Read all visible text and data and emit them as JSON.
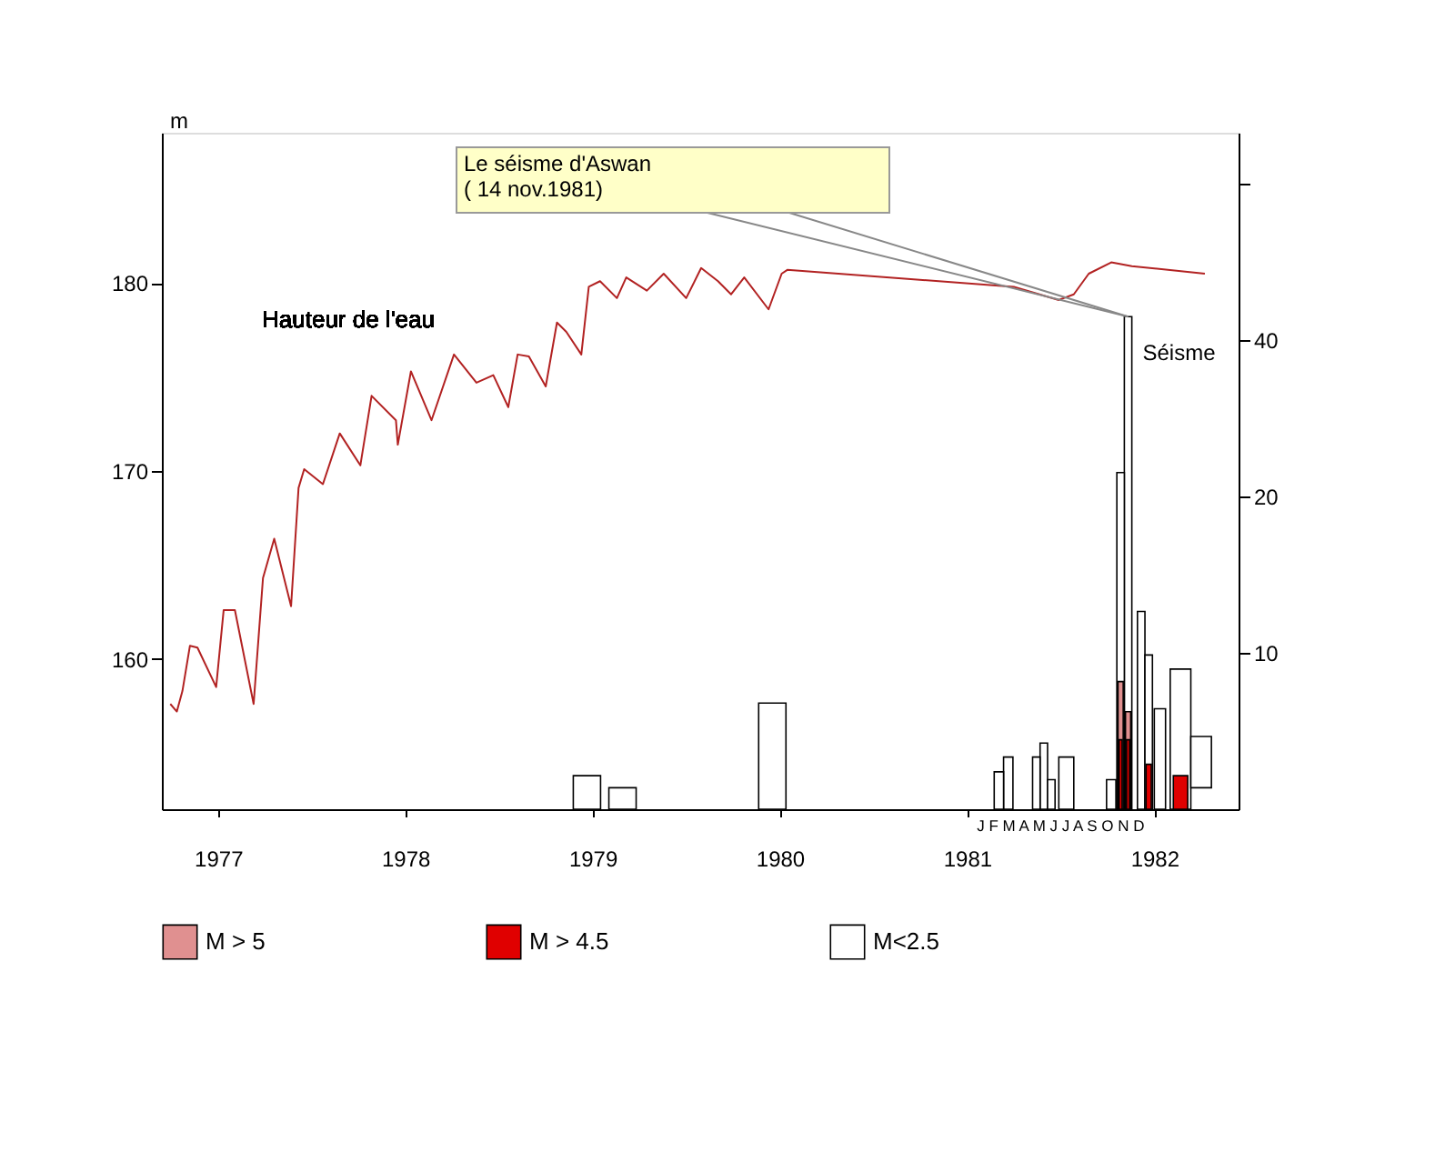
{
  "chart_data": {
    "type": "bar",
    "ylabel": "m",
    "legend": "bottom",
    "grid": false,
    "log": "y2",
    "xlim": [
      1976.7,
      1982.45
    ],
    "xticks": [
      1977,
      1978,
      1979,
      1980,
      1981,
      1982
    ],
    "ylim": [
      152,
      188
    ],
    "yticks": [
      160,
      170,
      180
    ],
    "y2lim": [
      5,
      100
    ],
    "y2ticks": [
      10,
      20,
      40,
      {
        "value": 80,
        "label": null
      }
    ],
    "x": [
      1978.97,
      1979.16,
      1979.96,
      1981.17,
      1981.22,
      1981.37,
      1981.41,
      1981.45,
      1981.53,
      1981.77,
      1981.82,
      1981.86,
      1981.93,
      1981.97,
      1982.03,
      1982.14,
      1982.25
    ],
    "annotations": [
      "Le séisme d'Aswan\n( 14 nov.1981)",
      "Séisme",
      "J F M A M J J A S O N D"
    ],
    "series": [
      {
        "name": "Hauteur de l'eau",
        "type": "line",
        "axis": "y",
        "color": "#b22222",
        "x": [
          1976.745,
          1976.78,
          1976.81,
          1976.85,
          1976.89,
          1976.99,
          1977.03,
          1977.09,
          1977.19,
          1977.24,
          1977.3,
          1977.39,
          1977.43,
          1977.46,
          1977.56,
          1977.65,
          1977.76,
          1977.82,
          1977.95,
          1977.96,
          1978.03,
          1978.14,
          1978.26,
          1978.38,
          1978.47,
          1978.55,
          1978.6,
          1978.66,
          1978.75,
          1978.81,
          1978.86,
          1978.94,
          1978.98,
          1979.04,
          1979.13,
          1979.18,
          1979.29,
          1979.38,
          1979.5,
          1979.58,
          1979.67,
          1979.74,
          1979.81,
          1979.94,
          1980.01,
          1980.04,
          1981.25,
          1981.49,
          1981.57,
          1981.65,
          1981.77,
          1981.88,
          1982.27
        ],
        "values": [
          157.6,
          157.2,
          158.3,
          160.7,
          160.6,
          158.5,
          162.6,
          162.6,
          157.6,
          164.3,
          166.4,
          162.8,
          169.1,
          170.1,
          169.3,
          172.0,
          170.3,
          174.0,
          172.7,
          171.4,
          175.3,
          172.7,
          176.2,
          174.7,
          175.1,
          173.4,
          176.2,
          176.1,
          174.5,
          177.9,
          177.4,
          176.2,
          179.8,
          180.1,
          179.2,
          180.3,
          179.6,
          180.5,
          179.2,
          180.8,
          180.1,
          179.4,
          180.3,
          178.6,
          180.5,
          180.7,
          179.8,
          179.1,
          179.4,
          180.5,
          181.1,
          180.9,
          180.5
        ]
      },
      {
        "name": "M > 5",
        "axis": "y2",
        "color": "#e09090",
        "values": [
          null,
          null,
          null,
          null,
          null,
          null,
          null,
          null,
          null,
          null,
          8.8,
          7.7,
          null,
          null,
          null,
          null,
          null
        ]
      },
      {
        "name": "M > 4.5",
        "axis": "y2",
        "color": "#e00000",
        "values": [
          null,
          null,
          null,
          null,
          null,
          null,
          null,
          null,
          null,
          null,
          6.8,
          6.8,
          null,
          6.1,
          null,
          5.8,
          null
        ]
      },
      {
        "name": "M<2.5",
        "axis": "y2",
        "color": "#ffffff",
        "values": [
          5.8,
          5.5,
          8.0,
          5.9,
          6.3,
          6.3,
          6.7,
          5.7,
          6.3,
          5.7,
          22.2,
          44.3,
          12.0,
          9.9,
          7.8,
          9.3,
          1.4
        ],
        "base": [
          null,
          null,
          null,
          null,
          null,
          null,
          null,
          null,
          null,
          null,
          null,
          null,
          null,
          null,
          null,
          null,
          5.5
        ]
      }
    ]
  }
}
